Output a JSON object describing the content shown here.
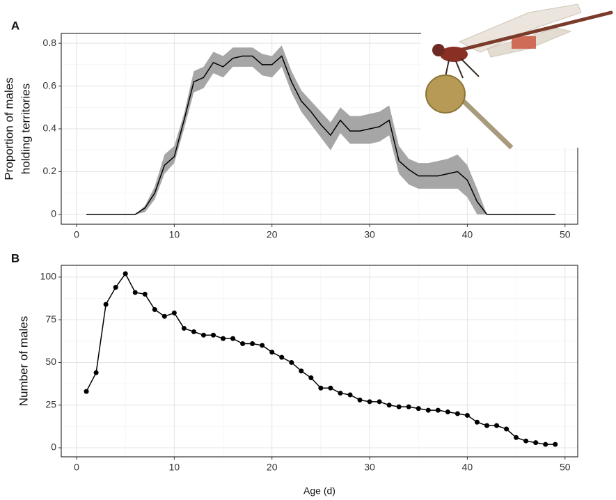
{
  "chart_data": [
    {
      "type": "line",
      "label": "A",
      "ylabel": [
        "Proportion of males",
        "holding territories"
      ],
      "x": [
        1,
        2,
        3,
        4,
        5,
        6,
        7,
        8,
        9,
        10,
        11,
        12,
        13,
        14,
        15,
        16,
        17,
        18,
        19,
        20,
        21,
        22,
        23,
        24,
        25,
        26,
        27,
        28,
        29,
        30,
        31,
        32,
        33,
        34,
        35,
        36,
        37,
        38,
        39,
        40,
        41,
        42,
        43,
        44,
        45,
        46,
        47,
        48,
        49
      ],
      "series": [
        {
          "color": "#000000",
          "band_color": "#a6a6a6",
          "values": [
            0,
            0,
            0,
            0,
            0,
            0,
            0.03,
            0.1,
            0.23,
            0.27,
            0.44,
            0.62,
            0.64,
            0.71,
            0.69,
            0.73,
            0.74,
            0.74,
            0.7,
            0.7,
            0.74,
            0.62,
            0.53,
            0.48,
            0.42,
            0.37,
            0.44,
            0.39,
            0.39,
            0.4,
            0.41,
            0.44,
            0.25,
            0.21,
            0.18,
            0.18,
            0.18,
            0.19,
            0.2,
            0.16,
            0.06,
            0,
            0,
            0,
            0,
            0,
            0,
            0,
            0
          ],
          "lower": [
            0,
            0,
            0,
            0,
            0,
            0,
            0.01,
            0.07,
            0.19,
            0.24,
            0.4,
            0.57,
            0.59,
            0.66,
            0.64,
            0.69,
            0.69,
            0.69,
            0.65,
            0.64,
            0.69,
            0.57,
            0.48,
            0.42,
            0.36,
            0.3,
            0.38,
            0.33,
            0.33,
            0.33,
            0.34,
            0.37,
            0.19,
            0.14,
            0.12,
            0.12,
            0.12,
            0.12,
            0.12,
            0.08,
            0,
            0,
            0,
            0,
            0,
            0,
            0,
            0,
            0
          ],
          "upper": [
            0,
            0,
            0,
            0,
            0,
            0,
            0.04,
            0.13,
            0.28,
            0.32,
            0.47,
            0.67,
            0.69,
            0.76,
            0.74,
            0.78,
            0.78,
            0.78,
            0.75,
            0.74,
            0.79,
            0.67,
            0.58,
            0.53,
            0.48,
            0.43,
            0.5,
            0.46,
            0.46,
            0.47,
            0.48,
            0.51,
            0.32,
            0.26,
            0.24,
            0.24,
            0.25,
            0.26,
            0.28,
            0.23,
            0.12,
            0,
            0,
            0,
            0,
            0,
            0,
            0,
            0
          ]
        }
      ],
      "xlim": [
        -1.57,
        51.3
      ],
      "xticks": [
        0,
        10,
        20,
        30,
        40,
        50
      ],
      "ylim": [
        -0.046,
        0.846
      ],
      "yticks": [
        0,
        0.2,
        0.4,
        0.6,
        0.8
      ],
      "grid": true,
      "minor_grid": true
    },
    {
      "type": "line_points",
      "label": "B",
      "ylabel": [
        "Number of males"
      ],
      "xlabel": "Age (d)",
      "x": [
        1,
        2,
        3,
        4,
        5,
        6,
        7,
        8,
        9,
        10,
        11,
        12,
        13,
        14,
        15,
        16,
        17,
        18,
        19,
        20,
        21,
        22,
        23,
        24,
        25,
        26,
        27,
        28,
        29,
        30,
        31,
        32,
        33,
        34,
        35,
        36,
        37,
        38,
        39,
        40,
        41,
        42,
        43,
        44,
        45,
        46,
        47,
        48,
        49
      ],
      "series": [
        {
          "color": "#000000",
          "values": [
            33,
            44,
            84,
            94,
            102,
            91,
            90,
            81,
            77,
            79,
            70,
            68,
            66,
            66,
            64,
            64,
            61,
            61,
            60,
            56,
            53,
            50,
            45,
            41,
            35,
            35,
            32,
            31,
            28,
            27,
            27,
            25,
            24,
            24,
            23,
            22,
            22,
            21,
            20,
            19,
            15,
            13,
            13,
            11,
            6,
            4,
            3,
            2,
            2
          ]
        }
      ],
      "xlim": [
        -1.57,
        51.3
      ],
      "xticks": [
        0,
        10,
        20,
        30,
        40,
        50
      ],
      "ylim": [
        -5.3,
        106.9
      ],
      "yticks": [
        0,
        25,
        50,
        75,
        100
      ],
      "grid": true,
      "minor_grid": true
    }
  ]
}
